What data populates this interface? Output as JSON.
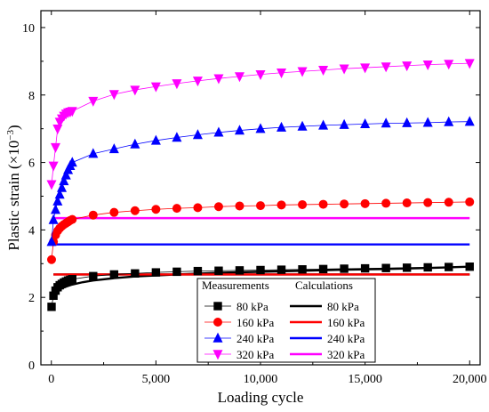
{
  "chart_data": {
    "type": "scatter",
    "xlabel": "Loading cycle",
    "ylabel_main": "Plastic strain (×10",
    "ylabel_exp": "−3",
    "ylabel_close": ")",
    "xlim": [
      -500,
      20500
    ],
    "ylim": [
      0,
      10.5
    ],
    "xticks": [
      0,
      5000,
      10000,
      15000,
      20000
    ],
    "xtick_labels": [
      "0",
      "5,000",
      "10,000",
      "15,000",
      "20,000"
    ],
    "yticks": [
      0,
      2,
      4,
      6,
      8,
      10
    ],
    "ytick_labels": [
      "0",
      "2",
      "4",
      "6",
      "8",
      "10"
    ],
    "legend": {
      "placement": "bottom-right",
      "header_measured": "Measurements",
      "header_calculated": "Calculations"
    },
    "x": [
      10,
      100,
      200,
      300,
      400,
      500,
      600,
      700,
      800,
      900,
      1000,
      2000,
      3000,
      4000,
      5000,
      6000,
      7000,
      8000,
      9000,
      10000,
      11000,
      12000,
      13000,
      14000,
      15000,
      16000,
      17000,
      18000,
      19000,
      20000
    ],
    "series": [
      {
        "name": "80 kPa",
        "color": "#000000",
        "marker": "square",
        "measured": [
          1.72,
          2.05,
          2.2,
          2.3,
          2.36,
          2.4,
          2.44,
          2.47,
          2.5,
          2.52,
          2.54,
          2.63,
          2.68,
          2.71,
          2.74,
          2.76,
          2.78,
          2.79,
          2.8,
          2.81,
          2.82,
          2.83,
          2.84,
          2.85,
          2.86,
          2.87,
          2.88,
          2.89,
          2.9,
          2.91
        ],
        "calc_x": [
          10,
          50,
          100,
          200,
          400,
          700,
          1000,
          1500,
          2000,
          3000,
          4000,
          5000,
          6000,
          8000,
          10000,
          12000,
          14000,
          16000,
          18000,
          20000
        ],
        "calc_y": [
          1.95,
          2.02,
          2.08,
          2.15,
          2.24,
          2.32,
          2.38,
          2.45,
          2.5,
          2.57,
          2.62,
          2.65,
          2.68,
          2.73,
          2.76,
          2.79,
          2.82,
          2.84,
          2.87,
          2.91
        ],
        "calc_flat": 2.68
      },
      {
        "name": "160 kPa",
        "color": "#ff0000",
        "marker": "circle",
        "measured": [
          3.12,
          3.65,
          3.85,
          3.97,
          4.05,
          4.11,
          4.16,
          4.2,
          4.24,
          4.28,
          4.31,
          4.44,
          4.52,
          4.57,
          4.61,
          4.64,
          4.66,
          4.69,
          4.71,
          4.72,
          4.74,
          4.75,
          4.76,
          4.77,
          4.78,
          4.79,
          4.8,
          4.81,
          4.82,
          4.83
        ],
        "calc_flat": 2.68
      },
      {
        "name": "240 kPa",
        "color": "#0000ff",
        "marker": "triangle-up",
        "measured": [
          3.65,
          4.3,
          4.6,
          4.85,
          5.05,
          5.25,
          5.45,
          5.62,
          5.78,
          5.9,
          6.0,
          6.26,
          6.4,
          6.54,
          6.65,
          6.74,
          6.82,
          6.89,
          6.95,
          7.0,
          7.04,
          7.07,
          7.1,
          7.12,
          7.14,
          7.16,
          7.17,
          7.18,
          7.2,
          7.21
        ],
        "calc_flat": 3.57
      },
      {
        "name": "320 kPa",
        "color": "#ff00ff",
        "marker": "triangle-down",
        "measured": [
          5.35,
          5.9,
          6.45,
          7.0,
          7.2,
          7.3,
          7.38,
          7.44,
          7.48,
          7.5,
          7.52,
          7.82,
          8.02,
          8.15,
          8.25,
          8.34,
          8.42,
          8.49,
          8.55,
          8.61,
          8.66,
          8.7,
          8.74,
          8.78,
          8.81,
          8.84,
          8.87,
          8.9,
          8.92,
          8.94
        ],
        "calc_flat": 4.35
      }
    ]
  }
}
